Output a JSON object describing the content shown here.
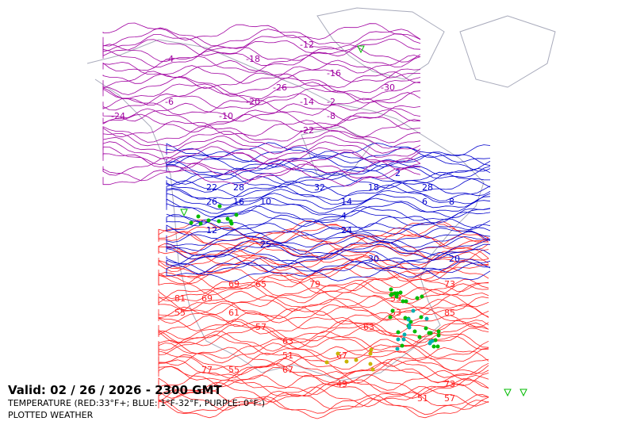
{
  "map": {
    "valid_label": "Valid: 02 / 26 / 2026  -  2300 GMT",
    "legend_line_1": "TEMPERATURE (RED:33°F+; BLUE: 1°F-32°F, PURPLE: 0°F-)",
    "legend_line_2": "PLOTTED WEATHER",
    "colors": {
      "warm": "#ff2020",
      "cold": "#0000cc",
      "very_cold": "#a000a0",
      "coast": "#a8aabb",
      "weather_green": "#00bb00",
      "weather_yellow": "#c8b400",
      "weather_cyan": "#00b0b0"
    },
    "contour_labels": {
      "red": [
        "49",
        "51",
        "53",
        "51",
        "55",
        "57",
        "57",
        "61",
        "63",
        "67",
        "67",
        "59",
        "65",
        "69",
        "73",
        "77",
        "73",
        "79",
        "81",
        "85",
        "55",
        "63",
        "69"
      ],
      "blue": [
        "4",
        "6",
        "8",
        "10",
        "12",
        "14",
        "16",
        "18",
        "20",
        "22",
        "24",
        "26",
        "28",
        "30",
        "32",
        "2",
        "25",
        "28"
      ],
      "purple": [
        "-30",
        "-26",
        "-22",
        "-18",
        "-16",
        "-12",
        "-10",
        "-8",
        "-6",
        "-4",
        "-2",
        "-24",
        "-20",
        "-14"
      ]
    }
  }
}
